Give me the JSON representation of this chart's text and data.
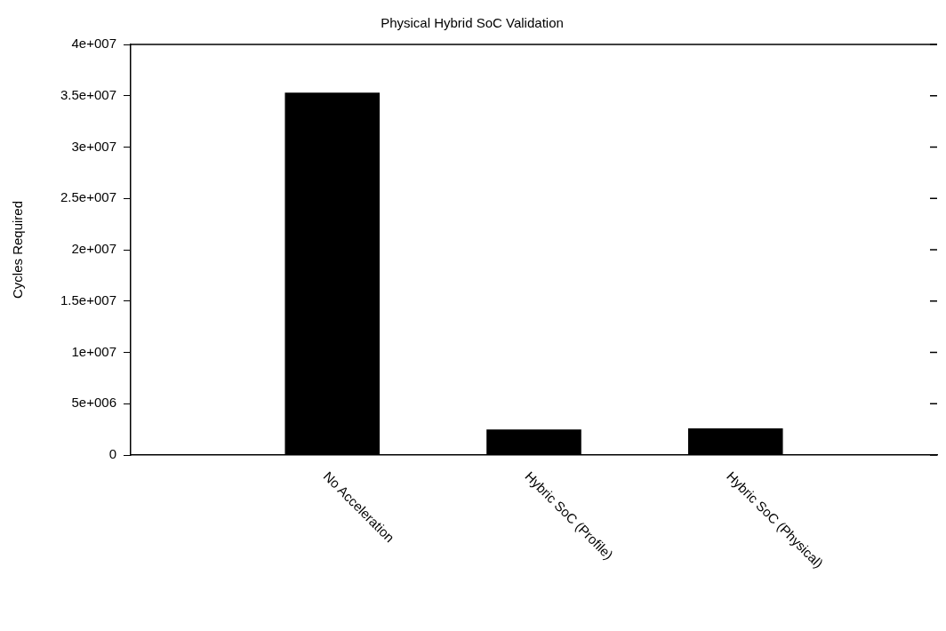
{
  "chart_data": {
    "type": "bar",
    "title": "Physical Hybrid SoC Validation",
    "ylabel": "Cycles Required",
    "categories": [
      null,
      "No Acceleration",
      "Hybric SoC (Profile)",
      "Hybric SoC (Physical)",
      null
    ],
    "values": [
      null,
      35300000,
      2500000,
      2600000,
      null
    ],
    "color": "#000000",
    "ylim": [
      0,
      40000000
    ],
    "yticks": [
      0,
      {
        "value": 5000000,
        "label": "5e+006"
      },
      {
        "value": 10000000,
        "label": "1e+007"
      },
      {
        "value": 15000000,
        "label": "1.5e+007"
      },
      {
        "value": 20000000,
        "label": "2e+007"
      },
      {
        "value": 25000000,
        "label": "2.5e+007"
      },
      {
        "value": 30000000,
        "label": "3e+007"
      },
      {
        "value": 35000000,
        "label": "3.5e+007"
      },
      {
        "value": 40000000,
        "label": "4e+007"
      }
    ],
    "grid": false,
    "legend": false
  }
}
